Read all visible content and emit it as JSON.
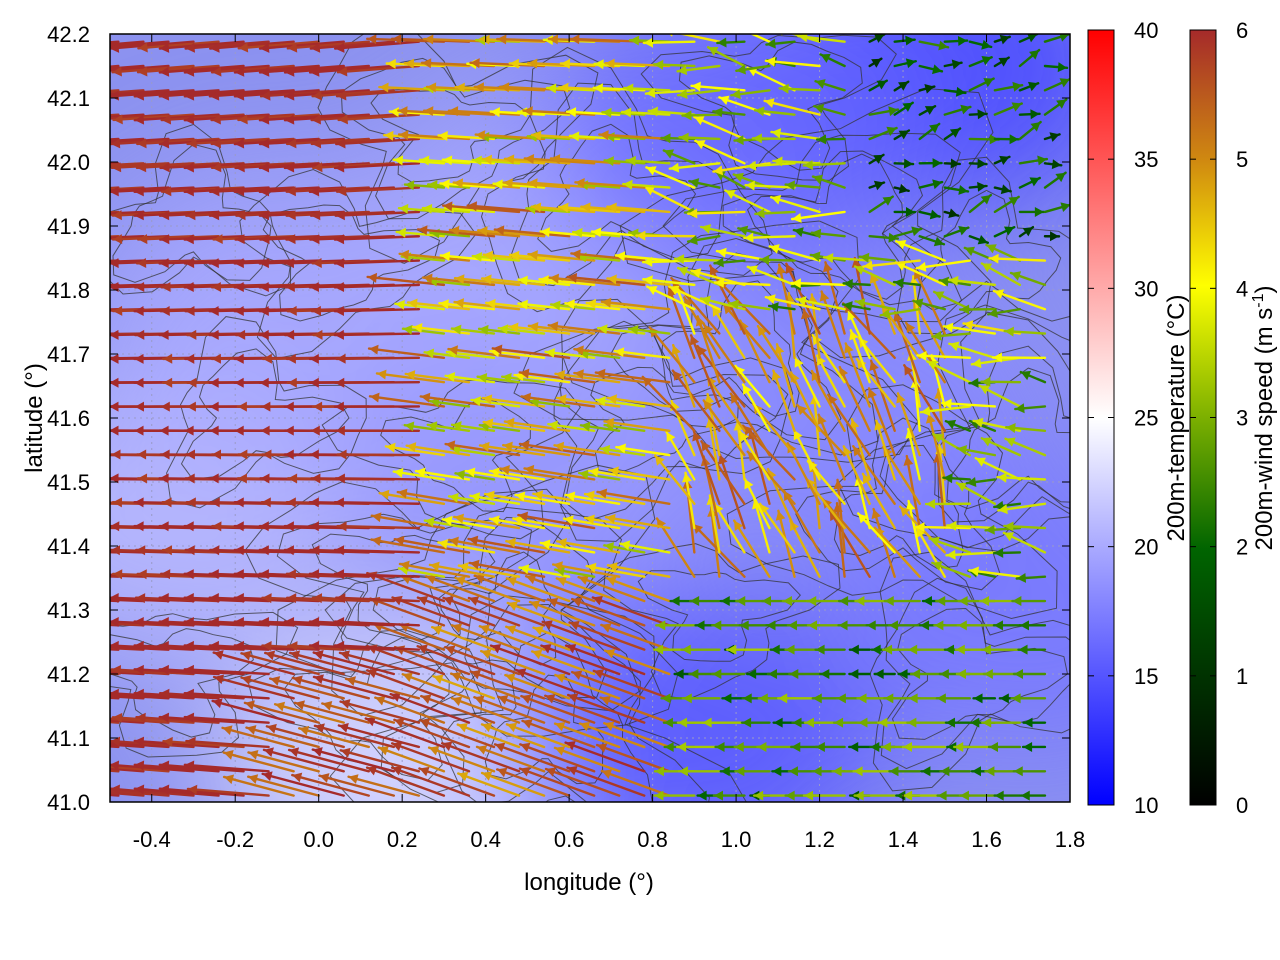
{
  "chart_data": {
    "type": "vector-field",
    "xlabel": "longitude (°)",
    "ylabel": "latitude (°)",
    "xlim": [
      -0.5,
      1.8
    ],
    "ylim": [
      41.0,
      42.2
    ],
    "xticks": [
      -0.4,
      -0.2,
      0.0,
      0.2,
      0.4,
      0.6,
      0.8,
      1.0,
      1.2,
      1.4,
      1.6,
      1.8
    ],
    "xtick_labels": [
      "-0.4",
      "-0.2",
      "0.0",
      "0.2",
      "0.4",
      "0.6",
      "0.8",
      "1.0",
      "1.2",
      "1.4",
      "1.6",
      "1.8"
    ],
    "yticks": [
      41.0,
      41.1,
      41.2,
      41.3,
      41.4,
      41.5,
      41.6,
      41.7,
      41.8,
      41.9,
      42.0,
      42.1,
      42.2
    ],
    "ytick_labels": [
      "41.0",
      "41.1",
      "41.2",
      "41.3",
      "41.4",
      "41.5",
      "41.6",
      "41.7",
      "41.8",
      "41.9",
      "42.0",
      "42.1",
      "42.2"
    ],
    "grid": true,
    "background_field": {
      "name": "200m-temperature",
      "colorbar_label": "200m-temperature (°C)",
      "range": [
        10,
        40
      ],
      "ticks": [
        10,
        15,
        20,
        25,
        30,
        35,
        40
      ],
      "tick_labels": [
        "10",
        "15",
        "20",
        "25",
        "30",
        "35",
        "40"
      ],
      "colors": [
        "#0000ff",
        "#ffffff",
        "#ff0000"
      ],
      "regions": [
        {
          "lon": -0.35,
          "lat": 41.45,
          "value": 21
        },
        {
          "lon": -0.1,
          "lat": 41.75,
          "value": 20
        },
        {
          "lon": 0.2,
          "lat": 41.05,
          "value": 23
        },
        {
          "lon": 0.5,
          "lat": 41.5,
          "value": 19
        },
        {
          "lon": 0.6,
          "lat": 41.9,
          "value": 20
        },
        {
          "lon": 0.9,
          "lat": 41.1,
          "value": 15
        },
        {
          "lon": 1.3,
          "lat": 41.6,
          "value": 18
        },
        {
          "lon": 1.5,
          "lat": 42.15,
          "value": 14
        },
        {
          "lon": 1.0,
          "lat": 42.05,
          "value": 16
        },
        {
          "lon": 1.7,
          "lat": 41.3,
          "value": 17
        }
      ]
    },
    "wind_field": {
      "name": "200m-wind speed",
      "colorbar_label": "200m-wind speed (m s",
      "colorbar_label_sup": "-1",
      "colorbar_label_end": ")",
      "range": [
        0,
        6
      ],
      "ticks": [
        0,
        1,
        2,
        3,
        4,
        5,
        6
      ],
      "tick_labels": [
        "0",
        "1",
        "2",
        "3",
        "4",
        "5",
        "6"
      ],
      "colors": [
        "#000000",
        "#006400",
        "#7cb000",
        "#ffff00",
        "#d08a10",
        "#a52a2a"
      ],
      "grid_dlon": 0.06,
      "grid_dlat": 0.038,
      "regimes": [
        {
          "region": "west (lon < 0.3)",
          "direction_deg_from_east": 180,
          "speed": 6
        },
        {
          "region": "central strip (0.3 to 0.9)",
          "direction_deg_from_east": 170,
          "speed": 3.5
        },
        {
          "region": "southeast (lon > 0.8, lat < 41.35)",
          "direction_deg_from_east": 180,
          "speed": 2
        },
        {
          "region": "convergence zone (1.1 to 1.5, 41.4 to 41.7)",
          "direction_deg_from_east": 100,
          "speed": 4
        },
        {
          "region": "northeast (lon > 1.3, lat > 41.8)",
          "direction_deg_from_east": 0,
          "speed": 1.5
        }
      ]
    },
    "contours": {
      "color": "#333333",
      "description": "terrain elevation isolines"
    }
  }
}
